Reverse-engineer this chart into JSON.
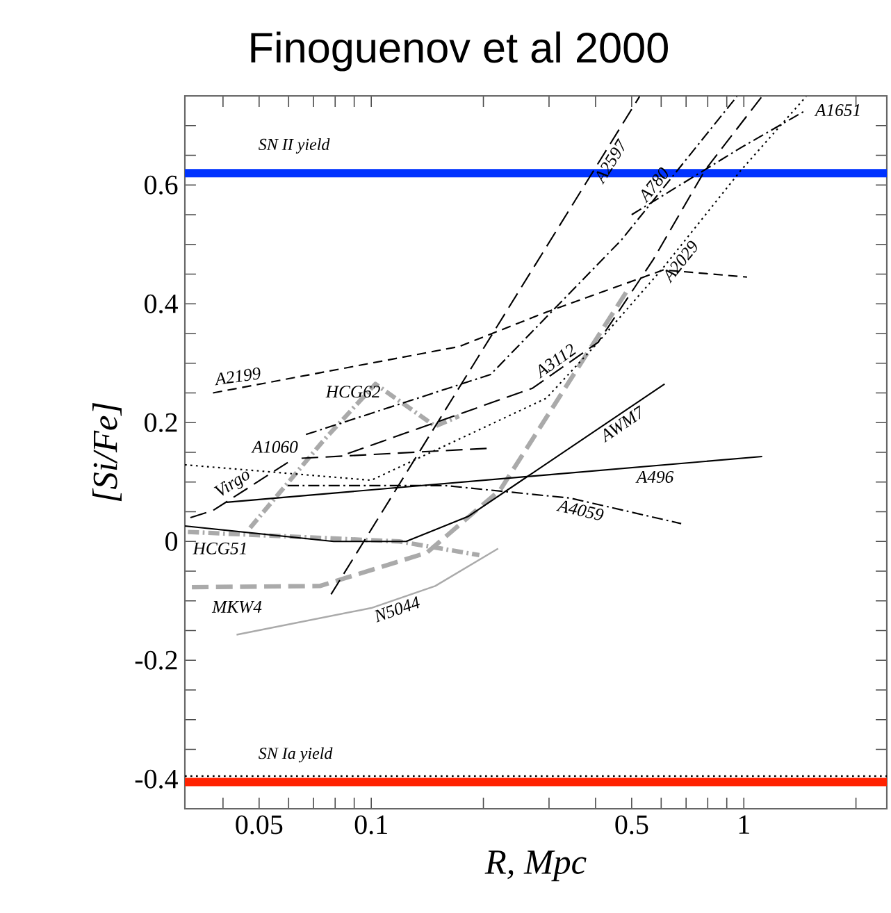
{
  "chart_data": {
    "type": "line",
    "title": "Finoguenov et al 2000",
    "xlabel": "R,  Mpc",
    "ylabel": "[Si/Fe]",
    "log": "x",
    "xlim": [
      0.0316,
      2.42
    ],
    "ylim": [
      -0.45,
      0.75
    ],
    "xticks": [
      {
        "value": 0.04,
        "label": null
      },
      0.05,
      {
        "value": 0.06,
        "label": null
      },
      {
        "value": 0.07,
        "label": null
      },
      {
        "value": 0.08,
        "label": null
      },
      {
        "value": 0.09,
        "label": null
      },
      0.1,
      {
        "value": 0.2,
        "label": null
      },
      {
        "value": 0.3,
        "label": null
      },
      {
        "value": 0.4,
        "label": null
      },
      0.5,
      {
        "value": 0.6,
        "label": null
      },
      {
        "value": 0.7,
        "label": null
      },
      {
        "value": 0.8,
        "label": null
      },
      {
        "value": 0.9,
        "label": null
      },
      1,
      {
        "value": 2,
        "label": null
      }
    ],
    "yticks": [
      {
        "value": -0.45,
        "label": null
      },
      -0.4,
      {
        "value": -0.35,
        "label": null
      },
      {
        "value": -0.3,
        "label": null
      },
      {
        "value": -0.25,
        "label": null
      },
      -0.2,
      {
        "value": -0.15,
        "label": null
      },
      {
        "value": -0.1,
        "label": null
      },
      {
        "value": -0.05,
        "label": null
      },
      0,
      {
        "value": 0.05,
        "label": null
      },
      {
        "value": 0.1,
        "label": null
      },
      {
        "value": 0.15,
        "label": null
      },
      0.2,
      {
        "value": 0.25,
        "label": null
      },
      {
        "value": 0.3,
        "label": null
      },
      {
        "value": 0.35,
        "label": null
      },
      0.4,
      {
        "value": 0.45,
        "label": null
      },
      {
        "value": 0.5,
        "label": null
      },
      {
        "value": 0.55,
        "label": null
      },
      0.6,
      {
        "value": 0.65,
        "label": null
      },
      {
        "value": 0.7,
        "label": null
      }
    ],
    "ref_lines": [
      {
        "axis": "y",
        "value": 0.62,
        "label": "SN II yield",
        "color": "#0033ff"
      },
      {
        "axis": "y",
        "value": -0.395,
        "color": "#000000",
        "line_style": "dotted"
      },
      {
        "axis": "y",
        "value": -0.405,
        "label": "SN Ia yield",
        "color": "#ff2200"
      }
    ],
    "series": [
      {
        "name": "A2199",
        "color": "#000000",
        "line_style": "dashed",
        "x": [
          0.0376,
          0.172,
          0.295,
          0.608,
          1.02
        ],
        "values": [
          0.25,
          0.328,
          0.386,
          0.457,
          0.445
        ]
      },
      {
        "name": "HCG62",
        "color": "#aaaaaa",
        "line_style": "dashdot",
        "x": [
          0.0473,
          0.0747,
          0.1026,
          0.1485,
          0.172
        ],
        "values": [
          0.023,
          0.171,
          0.265,
          0.194,
          0.211
        ]
      },
      {
        "name": "HCG51",
        "color": "#aaaaaa",
        "line_style": "dashdot",
        "x": [
          0.0322,
          0.119,
          0.195
        ],
        "values": [
          0.016,
          0.0,
          -0.023
        ]
      },
      {
        "name": "MKW4",
        "color": "#aaaaaa",
        "line_style": "longdash",
        "x": [
          0.033,
          0.0728,
          0.141,
          0.222,
          0.494
        ],
        "values": [
          -0.077,
          -0.075,
          -0.019,
          0.087,
          0.429
        ]
      },
      {
        "name": "N5044",
        "color": "#aaaaaa",
        "line_style": "solid",
        "x": [
          0.0435,
          0.1,
          0.1485,
          0.219
        ],
        "values": [
          -0.157,
          -0.112,
          -0.075,
          -0.012
        ]
      },
      {
        "name": "AWM7",
        "color": "#000000",
        "line_style": "solid",
        "x": [
          0.0316,
          0.0793,
          0.124,
          0.182,
          0.613
        ],
        "values": [
          0.026,
          0.0,
          0.0,
          0.042,
          0.265
        ]
      },
      {
        "name": "A496",
        "color": "#000000",
        "line_style": "solid",
        "x": [
          0.0409,
          1.12
        ],
        "values": [
          0.066,
          0.143
        ]
      },
      {
        "name": "Virgo",
        "color": "#000000",
        "line_style": "longdash",
        "x": [
          0.0327,
          0.0376,
          0.0597
        ],
        "values": [
          0.04,
          0.052,
          0.133
        ]
      },
      {
        "name": "A1060",
        "color": "#000000",
        "line_style": "longdash",
        "x": [
          0.065,
          0.209
        ],
        "values": [
          0.14,
          0.157
        ]
      },
      {
        "name": "A2029",
        "color": "#000000",
        "line_style": "dotted",
        "x": [
          0.0316,
          0.1,
          0.295,
          0.406,
          0.608,
          0.983,
          1.47
        ],
        "values": [
          0.129,
          0.103,
          0.241,
          0.335,
          0.461,
          0.625,
          0.749
        ]
      },
      {
        "name": "A2597",
        "color": "#000000",
        "line_style": "longdash",
        "x": [
          0.078,
          0.525
        ],
        "values": [
          -0.089,
          0.749
        ]
      },
      {
        "name": "A780",
        "color": "#000000",
        "line_style": "dashdot",
        "x": [
          0.0668,
          0.209,
          0.47,
          0.958
        ],
        "values": [
          0.18,
          0.281,
          0.508,
          0.749
        ]
      },
      {
        "name": "A3112",
        "color": "#000000",
        "line_style": "longdash",
        "x": [
          0.0865,
          0.271,
          0.406,
          0.572,
          0.787,
          1.118
        ],
        "values": [
          0.148,
          0.258,
          0.335,
          0.475,
          0.625,
          0.749
        ]
      },
      {
        "name": "A1651",
        "color": "#000000",
        "line_style": "dashdot",
        "x": [
          0.5,
          0.983,
          1.47
        ],
        "values": [
          0.55,
          0.663,
          0.726
        ]
      },
      {
        "name": "A4059",
        "color": "#000000",
        "line_style": "dashdot",
        "x": [
          0.0597,
          0.158,
          0.342,
          0.679
        ],
        "values": [
          0.094,
          0.094,
          0.073,
          0.03
        ]
      }
    ]
  }
}
